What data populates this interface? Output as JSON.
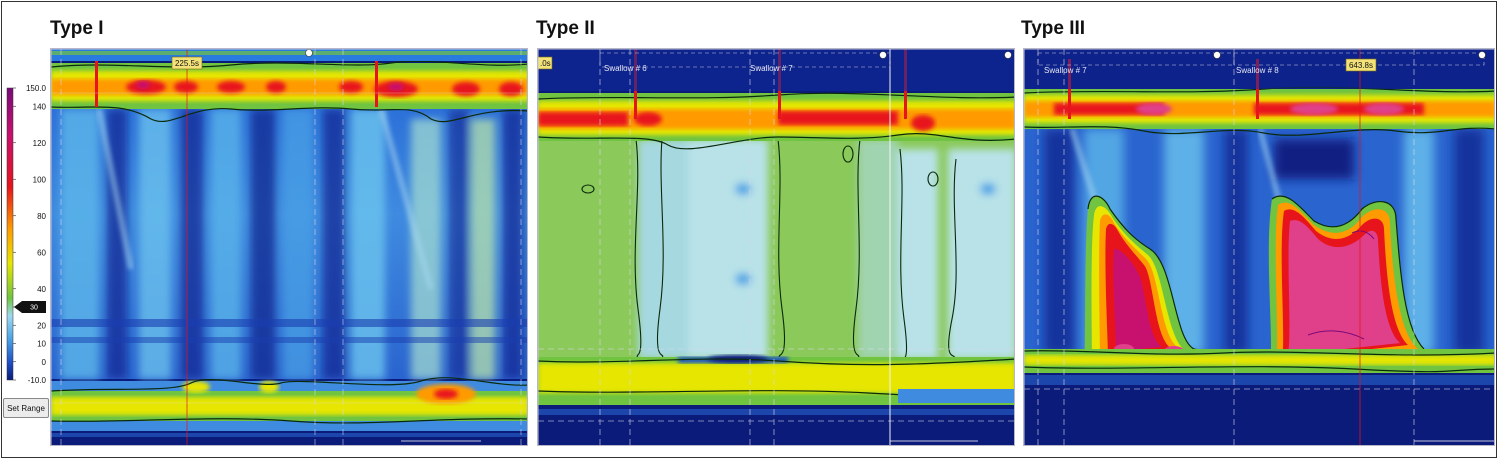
{
  "chart_data": [
    {
      "type": "heatmap",
      "title": "Type I",
      "colorbar": {
        "ticks": [
          "150.0",
          "140",
          "120",
          "100",
          "80",
          "60",
          "40",
          "30",
          "20",
          "10",
          "0",
          "-10.0"
        ],
        "tick_values": [
          150,
          140,
          120,
          100,
          80,
          60,
          40,
          30,
          20,
          10,
          0,
          -10
        ],
        "range": [
          -10,
          150
        ],
        "isobar_marker": "30",
        "button_label": "Set Range",
        "colors": [
          "#0a1b7a",
          "#1f4fc8",
          "#4aa3e6",
          "#9fd8f0",
          "#70c440",
          "#e6e600",
          "#ff9a00",
          "#e8141c",
          "#c8106e",
          "#7a0a7a"
        ]
      },
      "markers": [
        "225.5s"
      ],
      "swallow_labels": []
    },
    {
      "type": "heatmap",
      "title": "Type II",
      "markers": [
        ".0s"
      ],
      "swallow_labels": [
        "Swallow # 6",
        "Swallow # 7"
      ]
    },
    {
      "type": "heatmap",
      "title": "Type III",
      "markers": [
        "643.8s"
      ],
      "swallow_labels": [
        "Swallow # 7",
        "Swallow # 8"
      ]
    }
  ],
  "colors": {
    "background": "#0a1b7a",
    "low": "#1f4fc8",
    "cyan": "#4aa3e6",
    "green": "#70c440",
    "yellow": "#e6e600",
    "orange": "#ff9a00",
    "red": "#e8141c",
    "magenta": "#e0408a",
    "contour": "#0b2a0b"
  }
}
